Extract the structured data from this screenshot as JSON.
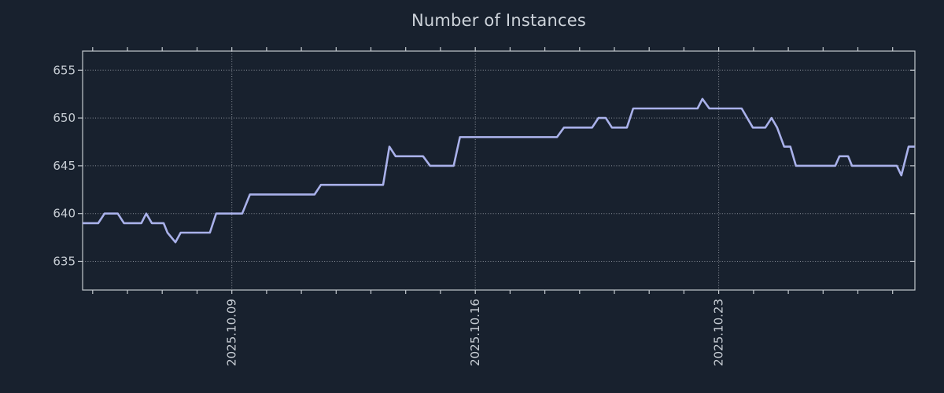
{
  "page": {
    "background_color": "#18212e"
  },
  "chart": {
    "title": "Number of Instances",
    "title_color": "#cdd3da",
    "axis_color": "#c3c9cf",
    "grid_color": "#a9aeb6",
    "label_color": "#c6ccd3"
  },
  "chart_data": {
    "type": "line",
    "title": "Number of Instances",
    "xlabel": "",
    "ylabel": "",
    "grid": "dotted",
    "legend": "none",
    "x_unit": "days since 2025-10-05 00:00",
    "xlim": [
      -0.29,
      23.64
    ],
    "ylim": [
      632,
      657
    ],
    "y_ticks": [
      635,
      640,
      645,
      650,
      655
    ],
    "x_major_ticks": [
      {
        "day": 4,
        "label": "2025.10.09"
      },
      {
        "day": 11,
        "label": "2025.10.16"
      },
      {
        "day": 18,
        "label": "2025.10.23"
      }
    ],
    "x_minor_tick_interval_days": 1,
    "series": [
      {
        "name": "instances",
        "color": "#a9b1ea",
        "points": [
          [
            -0.29,
            639
          ],
          [
            0.16,
            639
          ],
          [
            0.34,
            640
          ],
          [
            0.72,
            640
          ],
          [
            0.9,
            639
          ],
          [
            1.4,
            639
          ],
          [
            1.54,
            640
          ],
          [
            1.7,
            639
          ],
          [
            2.04,
            639
          ],
          [
            2.15,
            638
          ],
          [
            2.38,
            637
          ],
          [
            2.53,
            638
          ],
          [
            3.37,
            638
          ],
          [
            3.55,
            640
          ],
          [
            4.3,
            640
          ],
          [
            4.52,
            642
          ],
          [
            6.38,
            642
          ],
          [
            6.56,
            643
          ],
          [
            8.35,
            643
          ],
          [
            8.53,
            647
          ],
          [
            8.71,
            646
          ],
          [
            9.5,
            646
          ],
          [
            9.7,
            645
          ],
          [
            10.38,
            645
          ],
          [
            10.56,
            648
          ],
          [
            13.35,
            648
          ],
          [
            13.55,
            649
          ],
          [
            14.36,
            649
          ],
          [
            14.54,
            650
          ],
          [
            14.75,
            650
          ],
          [
            14.93,
            649
          ],
          [
            15.36,
            649
          ],
          [
            15.54,
            651
          ],
          [
            17.39,
            651
          ],
          [
            17.53,
            652
          ],
          [
            17.73,
            651
          ],
          [
            18.66,
            651
          ],
          [
            18.98,
            649
          ],
          [
            19.34,
            649
          ],
          [
            19.52,
            650
          ],
          [
            19.68,
            649
          ],
          [
            19.88,
            647
          ],
          [
            20.06,
            647
          ],
          [
            20.22,
            645
          ],
          [
            21.35,
            645
          ],
          [
            21.47,
            646
          ],
          [
            21.72,
            646
          ],
          [
            21.83,
            645
          ],
          [
            23.12,
            645
          ],
          [
            23.25,
            644
          ],
          [
            23.46,
            647
          ],
          [
            23.64,
            647
          ]
        ]
      }
    ]
  }
}
